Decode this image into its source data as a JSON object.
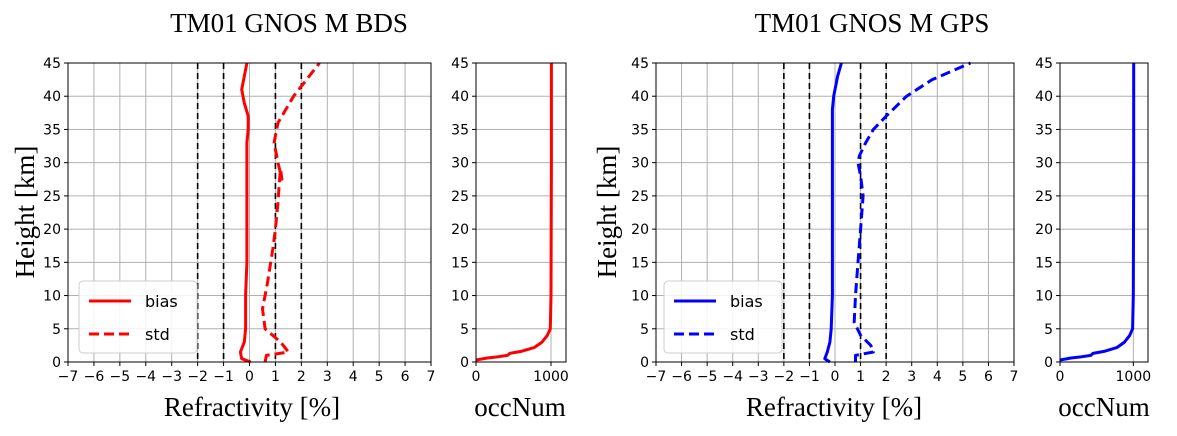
{
  "colors": {
    "BDS": "#ff0000",
    "GPS": "#0000ff",
    "ref_lines": "#000000",
    "grid": "#b0b0b0"
  },
  "figure": {
    "shared_labels": {
      "ylabel": "Height [km]",
      "xlabel_main": "Refractivity [%]",
      "xlabel_occ": "occNum",
      "legend_bias": "bias",
      "legend_std": "std"
    }
  },
  "chart_data": [
    {
      "type": "line",
      "title": "TM01 GNOS M BDS",
      "xlabel": "Refractivity [%]",
      "ylabel": "Height [km]",
      "xlim": [
        -7,
        7
      ],
      "ylim": [
        0,
        45
      ],
      "xticks": [
        "−7",
        "−6",
        "−5",
        "−4",
        "−3",
        "−2",
        "−1",
        "0",
        "1",
        "2",
        "3",
        "4",
        "5",
        "6",
        "7"
      ],
      "yticks": [
        "0",
        "5",
        "10",
        "15",
        "20",
        "25",
        "30",
        "35",
        "40",
        "45"
      ],
      "grid": true,
      "legend": "lower-left",
      "color": "#ff0000",
      "reference_lines_x": [
        -2,
        -1,
        1,
        2
      ],
      "series": [
        {
          "name": "bias",
          "style": "solid",
          "x": [
            0.05,
            -0.3,
            -0.35,
            -0.2,
            -0.15,
            -0.15,
            -0.1,
            -0.1,
            -0.1,
            -0.1,
            -0.1,
            -0.1,
            -0.05,
            -0.05,
            -0.2,
            -0.3,
            -0.2,
            -0.1
          ],
          "y": [
            0,
            0.5,
            1.5,
            3,
            5,
            10,
            15,
            20,
            25,
            28,
            30,
            33,
            35,
            37,
            39,
            41,
            43,
            45
          ]
        },
        {
          "name": "std",
          "style": "dashed",
          "x": [
            0.6,
            0.65,
            1.5,
            1.2,
            0.6,
            0.5,
            0.7,
            0.9,
            1.0,
            1.1,
            1.15,
            1.2,
            1.25,
            1.1,
            0.95,
            1.1,
            1.4,
            1.7,
            2.1,
            2.7
          ],
          "y": [
            0,
            1,
            1.5,
            3,
            5,
            8,
            12,
            17,
            20,
            24,
            27,
            29,
            27.5,
            30,
            33,
            36,
            38,
            40,
            42,
            45
          ]
        }
      ]
    },
    {
      "type": "line",
      "title": "",
      "xlabel": "occNum",
      "ylabel": "",
      "xlim": [
        0,
        1200
      ],
      "ylim": [
        0,
        45
      ],
      "xticks": [
        "0",
        "1000"
      ],
      "yticks": [
        "0",
        "5",
        "10",
        "15",
        "20",
        "25",
        "30",
        "35",
        "40",
        "45"
      ],
      "grid": true,
      "color": "#ff0000",
      "series": [
        {
          "x": [
            0,
            150,
            300,
            420,
            450,
            600,
            780,
            880,
            950,
            990,
            1000,
            1005,
            1005
          ],
          "y": [
            0.3,
            0.6,
            0.8,
            1.0,
            1.3,
            1.6,
            2.2,
            3.0,
            4.0,
            5.0,
            10,
            30,
            45
          ]
        }
      ]
    },
    {
      "type": "line",
      "title": "TM01 GNOS M GPS",
      "xlabel": "Refractivity [%]",
      "ylabel": "Height [km]",
      "xlim": [
        -7,
        7
      ],
      "ylim": [
        0,
        45
      ],
      "xticks": [
        "−7",
        "−6",
        "−5",
        "−4",
        "−3",
        "−2",
        "−1",
        "0",
        "1",
        "2",
        "3",
        "4",
        "5",
        "6",
        "7"
      ],
      "yticks": [
        "0",
        "5",
        "10",
        "15",
        "20",
        "25",
        "30",
        "35",
        "40",
        "45"
      ],
      "grid": true,
      "legend": "lower-left",
      "color": "#0000ff",
      "reference_lines_x": [
        -2,
        -1,
        1,
        2
      ],
      "series": [
        {
          "name": "bias",
          "style": "solid",
          "x": [
            -0.2,
            -0.4,
            -0.3,
            -0.2,
            -0.15,
            -0.1,
            -0.1,
            -0.1,
            -0.1,
            -0.1,
            -0.1,
            -0.1,
            -0.05,
            0.1,
            0.25
          ],
          "y": [
            0,
            0.5,
            1.5,
            3,
            5,
            10,
            15,
            20,
            25,
            30,
            35,
            38,
            40,
            43,
            45
          ]
        },
        {
          "name": "std",
          "style": "dashed",
          "x": [
            0.8,
            0.8,
            1.5,
            1.4,
            1.0,
            0.75,
            0.8,
            0.9,
            1.0,
            1.1,
            1.0,
            0.9,
            0.95,
            1.2,
            1.5,
            2.0,
            2.8,
            3.8,
            5.3
          ],
          "y": [
            0,
            1,
            1.5,
            2.5,
            4,
            6,
            10,
            15,
            20,
            25,
            28,
            30,
            31,
            33,
            35,
            37,
            40,
            42.5,
            45
          ]
        }
      ]
    },
    {
      "type": "line",
      "title": "",
      "xlabel": "occNum",
      "ylabel": "",
      "xlim": [
        0,
        1200
      ],
      "ylim": [
        0,
        45
      ],
      "xticks": [
        "0",
        "1000"
      ],
      "yticks": [
        "0",
        "5",
        "10",
        "15",
        "20",
        "25",
        "30",
        "35",
        "40",
        "45"
      ],
      "grid": true,
      "color": "#0000ff",
      "series": [
        {
          "x": [
            0,
            150,
            300,
            420,
            450,
            600,
            780,
            880,
            950,
            990,
            1000,
            1005,
            1005
          ],
          "y": [
            0.3,
            0.6,
            0.8,
            1.0,
            1.3,
            1.6,
            2.2,
            3.0,
            4.0,
            5.0,
            10,
            30,
            45
          ]
        }
      ]
    }
  ]
}
